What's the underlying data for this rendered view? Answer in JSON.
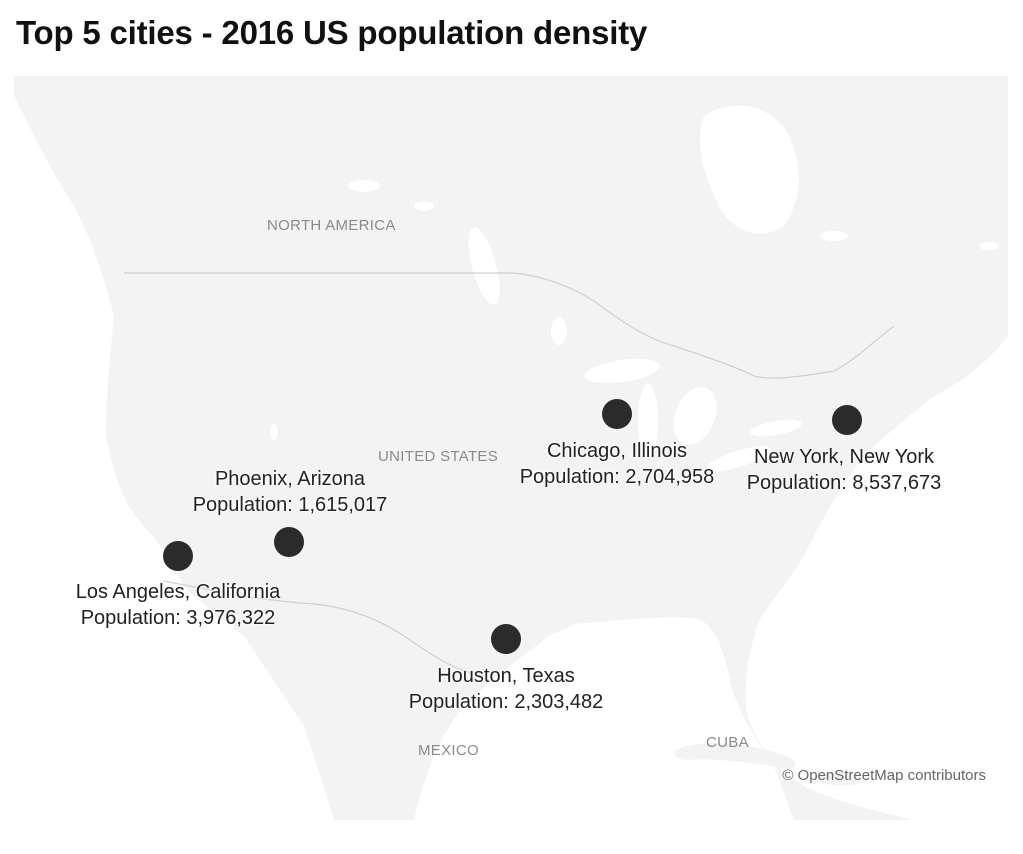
{
  "title": "Top 5 cities - 2016 US population density",
  "map": {
    "region_labels": {
      "north_america": "NORTH AMERICA",
      "united_states": "UNITED STATES",
      "mexico": "MEXICO",
      "cuba": "CUBA"
    },
    "attribution": "© OpenStreetMap contributors",
    "colors": {
      "land": "#f3f3f3",
      "water": "#ffffff",
      "border": "#d2d2d2",
      "marker": "#2b2b2b"
    }
  },
  "cities": [
    {
      "name": "Los Angeles, California",
      "population": "Population: 3,976,322"
    },
    {
      "name": "Phoenix, Arizona",
      "population": "Population: 1,615,017"
    },
    {
      "name": "Houston, Texas",
      "population": "Population: 2,303,482"
    },
    {
      "name": "Chicago, Illinois",
      "population": "Population: 2,704,958"
    },
    {
      "name": "New York, New York",
      "population": "Population: 8,537,673"
    }
  ]
}
